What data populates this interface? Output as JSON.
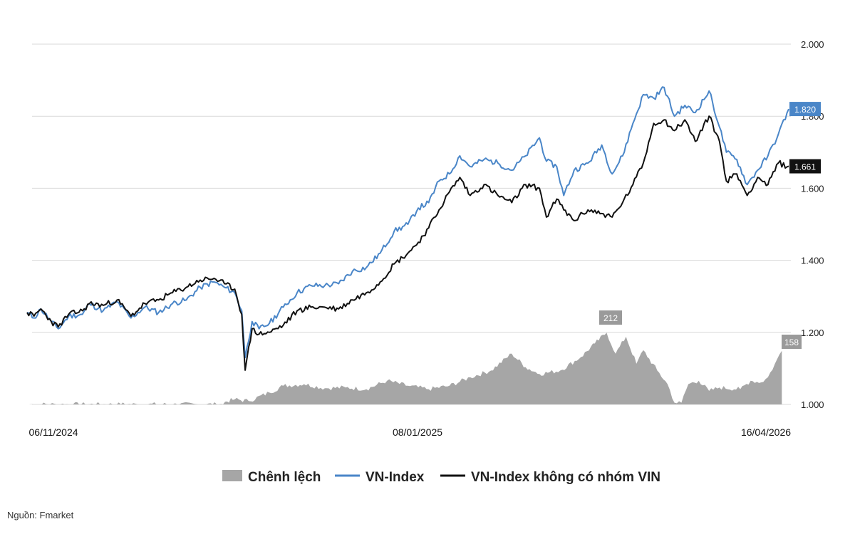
{
  "chart_data": {
    "type": "line",
    "title": "",
    "xlabel": "",
    "ylabel": "",
    "ylim": [
      1000,
      2000
    ],
    "y_ticks": [
      "2.000",
      "1.800",
      "1.600",
      "1.400",
      "1.200",
      "1.000"
    ],
    "y_tick_values": [
      2000,
      1800,
      1600,
      1400,
      1200,
      1000
    ],
    "x_tick_labels": [
      "06/11/2024",
      "08/01/2025",
      "16/04/2026"
    ],
    "grid": "horizontal",
    "legend": "bottom",
    "colors": {
      "spread": "#a6a6a6",
      "vnindex": "#4a86c8",
      "exvin": "#111111"
    },
    "series": [
      {
        "name": "Chênh lệch",
        "kind": "area",
        "keypoints": [
          [
            0,
            0
          ],
          [
            0.283,
            0
          ],
          [
            0.286,
            8
          ],
          [
            0.3,
            15
          ],
          [
            0.32,
            10
          ],
          [
            0.35,
            35
          ],
          [
            0.37,
            55
          ],
          [
            0.4,
            60
          ],
          [
            0.43,
            48
          ],
          [
            0.46,
            50
          ],
          [
            0.49,
            45
          ],
          [
            0.52,
            70
          ],
          [
            0.55,
            55
          ],
          [
            0.58,
            45
          ],
          [
            0.61,
            55
          ],
          [
            0.64,
            80
          ],
          [
            0.67,
            100
          ],
          [
            0.7,
            150
          ],
          [
            0.72,
            110
          ],
          [
            0.74,
            90
          ],
          [
            0.77,
            100
          ],
          [
            0.8,
            140
          ],
          [
            0.82,
            180
          ],
          [
            0.837,
            212
          ],
          [
            0.85,
            150
          ],
          [
            0.865,
            200
          ],
          [
            0.88,
            120
          ],
          [
            0.89,
            160
          ],
          [
            0.91,
            100
          ],
          [
            0.925,
            60
          ],
          [
            0.935,
            5
          ],
          [
            0.945,
            5
          ],
          [
            0.955,
            60
          ],
          [
            0.97,
            70
          ],
          [
            0.985,
            40
          ],
          [
            1.0,
            50
          ],
          [
            1.03,
            45
          ],
          [
            1.045,
            70
          ],
          [
            1.06,
            65
          ],
          [
            1.07,
            80
          ],
          [
            1.08,
            120
          ],
          [
            1.09,
            158
          ]
        ]
      },
      {
        "name": "VN-Index",
        "keypoints": [
          [
            0,
            1255
          ],
          [
            0.01,
            1240
          ],
          [
            0.02,
            1265
          ],
          [
            0.035,
            1230
          ],
          [
            0.045,
            1210
          ],
          [
            0.06,
            1245
          ],
          [
            0.08,
            1250
          ],
          [
            0.09,
            1280
          ],
          [
            0.11,
            1260
          ],
          [
            0.13,
            1285
          ],
          [
            0.15,
            1240
          ],
          [
            0.17,
            1270
          ],
          [
            0.19,
            1255
          ],
          [
            0.21,
            1280
          ],
          [
            0.23,
            1290
          ],
          [
            0.25,
            1325
          ],
          [
            0.27,
            1340
          ],
          [
            0.285,
            1325
          ],
          [
            0.3,
            1310
          ],
          [
            0.31,
            1260
          ],
          [
            0.315,
            1130
          ],
          [
            0.325,
            1230
          ],
          [
            0.335,
            1210
          ],
          [
            0.35,
            1225
          ],
          [
            0.37,
            1270
          ],
          [
            0.39,
            1310
          ],
          [
            0.41,
            1330
          ],
          [
            0.43,
            1330
          ],
          [
            0.45,
            1335
          ],
          [
            0.47,
            1370
          ],
          [
            0.49,
            1380
          ],
          [
            0.51,
            1420
          ],
          [
            0.53,
            1480
          ],
          [
            0.55,
            1500
          ],
          [
            0.565,
            1545
          ],
          [
            0.58,
            1560
          ],
          [
            0.595,
            1620
          ],
          [
            0.61,
            1640
          ],
          [
            0.625,
            1690
          ],
          [
            0.64,
            1660
          ],
          [
            0.66,
            1680
          ],
          [
            0.68,
            1670
          ],
          [
            0.7,
            1650
          ],
          [
            0.72,
            1690
          ],
          [
            0.74,
            1740
          ],
          [
            0.75,
            1675
          ],
          [
            0.765,
            1660
          ],
          [
            0.775,
            1580
          ],
          [
            0.79,
            1650
          ],
          [
            0.81,
            1670
          ],
          [
            0.83,
            1720
          ],
          [
            0.845,
            1640
          ],
          [
            0.86,
            1690
          ],
          [
            0.875,
            1780
          ],
          [
            0.89,
            1860
          ],
          [
            0.905,
            1850
          ],
          [
            0.92,
            1880
          ],
          [
            0.935,
            1800
          ],
          [
            0.95,
            1830
          ],
          [
            0.965,
            1810
          ],
          [
            0.985,
            1870
          ],
          [
            1.0,
            1770
          ],
          [
            1.01,
            1700
          ],
          [
            1.025,
            1680
          ],
          [
            1.04,
            1610
          ],
          [
            1.055,
            1650
          ],
          [
            1.07,
            1690
          ],
          [
            1.085,
            1750
          ],
          [
            1.1,
            1820
          ]
        ]
      },
      {
        "name": "VN-Index không có nhóm VIN",
        "keypoints": [
          [
            0,
            1255
          ],
          [
            0.01,
            1245
          ],
          [
            0.02,
            1265
          ],
          [
            0.035,
            1230
          ],
          [
            0.045,
            1215
          ],
          [
            0.06,
            1250
          ],
          [
            0.08,
            1260
          ],
          [
            0.09,
            1280
          ],
          [
            0.11,
            1275
          ],
          [
            0.13,
            1290
          ],
          [
            0.15,
            1245
          ],
          [
            0.17,
            1280
          ],
          [
            0.19,
            1290
          ],
          [
            0.21,
            1310
          ],
          [
            0.23,
            1325
          ],
          [
            0.25,
            1345
          ],
          [
            0.27,
            1350
          ],
          [
            0.285,
            1335
          ],
          [
            0.3,
            1320
          ],
          [
            0.31,
            1250
          ],
          [
            0.315,
            1095
          ],
          [
            0.325,
            1210
          ],
          [
            0.335,
            1195
          ],
          [
            0.35,
            1200
          ],
          [
            0.37,
            1220
          ],
          [
            0.39,
            1260
          ],
          [
            0.41,
            1270
          ],
          [
            0.43,
            1270
          ],
          [
            0.45,
            1265
          ],
          [
            0.47,
            1290
          ],
          [
            0.49,
            1310
          ],
          [
            0.51,
            1340
          ],
          [
            0.53,
            1390
          ],
          [
            0.55,
            1420
          ],
          [
            0.565,
            1450
          ],
          [
            0.58,
            1490
          ],
          [
            0.595,
            1540
          ],
          [
            0.61,
            1590
          ],
          [
            0.625,
            1630
          ],
          [
            0.64,
            1580
          ],
          [
            0.66,
            1610
          ],
          [
            0.68,
            1580
          ],
          [
            0.7,
            1560
          ],
          [
            0.72,
            1610
          ],
          [
            0.74,
            1600
          ],
          [
            0.75,
            1520
          ],
          [
            0.765,
            1570
          ],
          [
            0.775,
            1540
          ],
          [
            0.79,
            1510
          ],
          [
            0.81,
            1540
          ],
          [
            0.83,
            1530
          ],
          [
            0.845,
            1520
          ],
          [
            0.86,
            1560
          ],
          [
            0.875,
            1610
          ],
          [
            0.89,
            1670
          ],
          [
            0.905,
            1780
          ],
          [
            0.92,
            1790
          ],
          [
            0.935,
            1760
          ],
          [
            0.95,
            1790
          ],
          [
            0.965,
            1730
          ],
          [
            0.985,
            1800
          ],
          [
            1.0,
            1730
          ],
          [
            1.01,
            1620
          ],
          [
            1.025,
            1640
          ],
          [
            1.04,
            1580
          ],
          [
            1.055,
            1630
          ],
          [
            1.07,
            1610
          ],
          [
            1.085,
            1670
          ],
          [
            1.1,
            1661
          ]
        ]
      }
    ],
    "annotations": {
      "vnindex_last": "1.820",
      "exvin_last": "1.661",
      "spread_max": "212",
      "spread_last": "158"
    }
  },
  "legend": {
    "spread": "Chênh lệch",
    "vnindex": "VN-Index",
    "exvin": "VN-Index không có nhóm VIN"
  },
  "source": "Nguồn: Fmarket"
}
